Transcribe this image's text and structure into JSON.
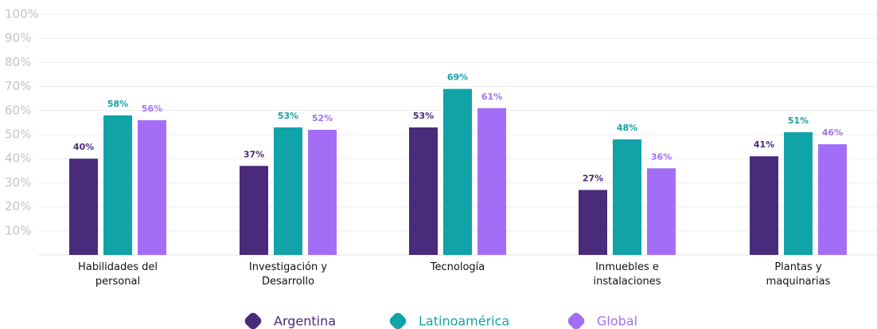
{
  "chart_data": {
    "type": "bar",
    "categories": [
      "Habilidades del personal",
      "Investigación y Desarrollo",
      "Tecnología",
      "Inmuebles e instalaciones",
      "Plantas y maquinarias"
    ],
    "series": [
      {
        "name": "Argentina",
        "color": "#4a2a7a",
        "values": [
          40,
          37,
          53,
          27,
          41
        ],
        "value_labels": [
          "40%",
          "37%",
          "53%",
          "27%",
          "41%"
        ]
      },
      {
        "name": "Latinoamérica",
        "color": "#10a3a8",
        "values": [
          58,
          53,
          69,
          48,
          51
        ],
        "value_labels": [
          "58%",
          "53%",
          "69%",
          "48%",
          "51%"
        ]
      },
      {
        "name": "Global",
        "color": "#a36ef5",
        "values": [
          56,
          52,
          61,
          36,
          46
        ],
        "value_labels": [
          "56%",
          "52%",
          "61%",
          "36%",
          "46%"
        ]
      }
    ],
    "ylim": [
      0,
      100
    ],
    "yticks": [
      {
        "value": 10,
        "label": "10%"
      },
      {
        "value": 20,
        "label": "20%"
      },
      {
        "value": 30,
        "label": "30%"
      },
      {
        "value": 40,
        "label": "40%"
      },
      {
        "value": 50,
        "label": "50%"
      },
      {
        "value": 60,
        "label": "60%"
      },
      {
        "value": 70,
        "label": "70%"
      },
      {
        "value": 80,
        "label": "80%"
      },
      {
        "value": 90,
        "label": "90%"
      },
      {
        "value": 100,
        "label": "100%"
      }
    ],
    "grid": true,
    "legend": "bottom"
  }
}
